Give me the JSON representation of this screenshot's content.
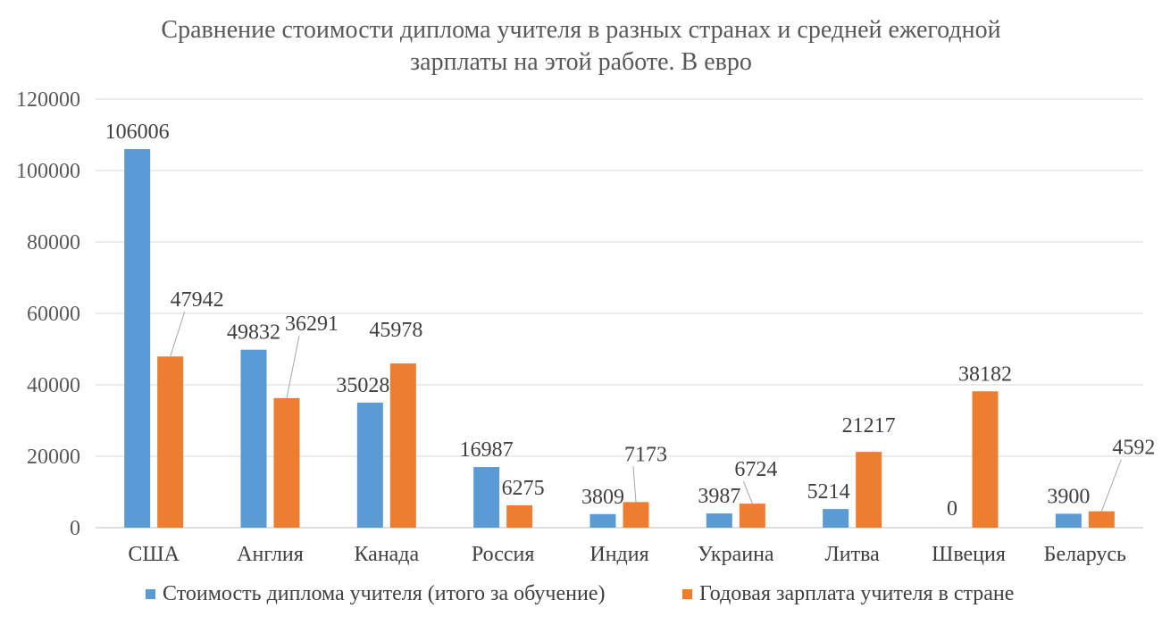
{
  "chart_data": {
    "type": "bar",
    "title": "Сравнение стоимости диплома учителя в разных странах и средней ежегодной зарплаты на этой работе. В евро",
    "title_lines": [
      "Сравнение стоимости диплома учителя в разных странах и средней ежегодной",
      "зарплаты на этой работе. В евро"
    ],
    "categories": [
      "США",
      "Англия",
      "Канада",
      "Россия",
      "Индия",
      "Украина",
      "Литва",
      "Швеция",
      "Беларусь"
    ],
    "series": [
      {
        "name": "Стоимость диплома учителя (итого за обучение)",
        "color": "#5B9BD5",
        "values": [
          106006,
          49832,
          35028,
          16987,
          3809,
          3987,
          5214,
          0,
          3900
        ]
      },
      {
        "name": "Годовая зарплата учителя в стране",
        "color": "#ED7D31",
        "values": [
          47942,
          36291,
          45978,
          6275,
          7173,
          6724,
          21217,
          38182,
          4592
        ]
      }
    ],
    "ylim": [
      0,
      120000
    ],
    "yticks": [
      0,
      20000,
      40000,
      60000,
      80000,
      100000,
      120000
    ],
    "xlabel": "",
    "ylabel": "",
    "grid": true,
    "legend_position": "bottom"
  }
}
